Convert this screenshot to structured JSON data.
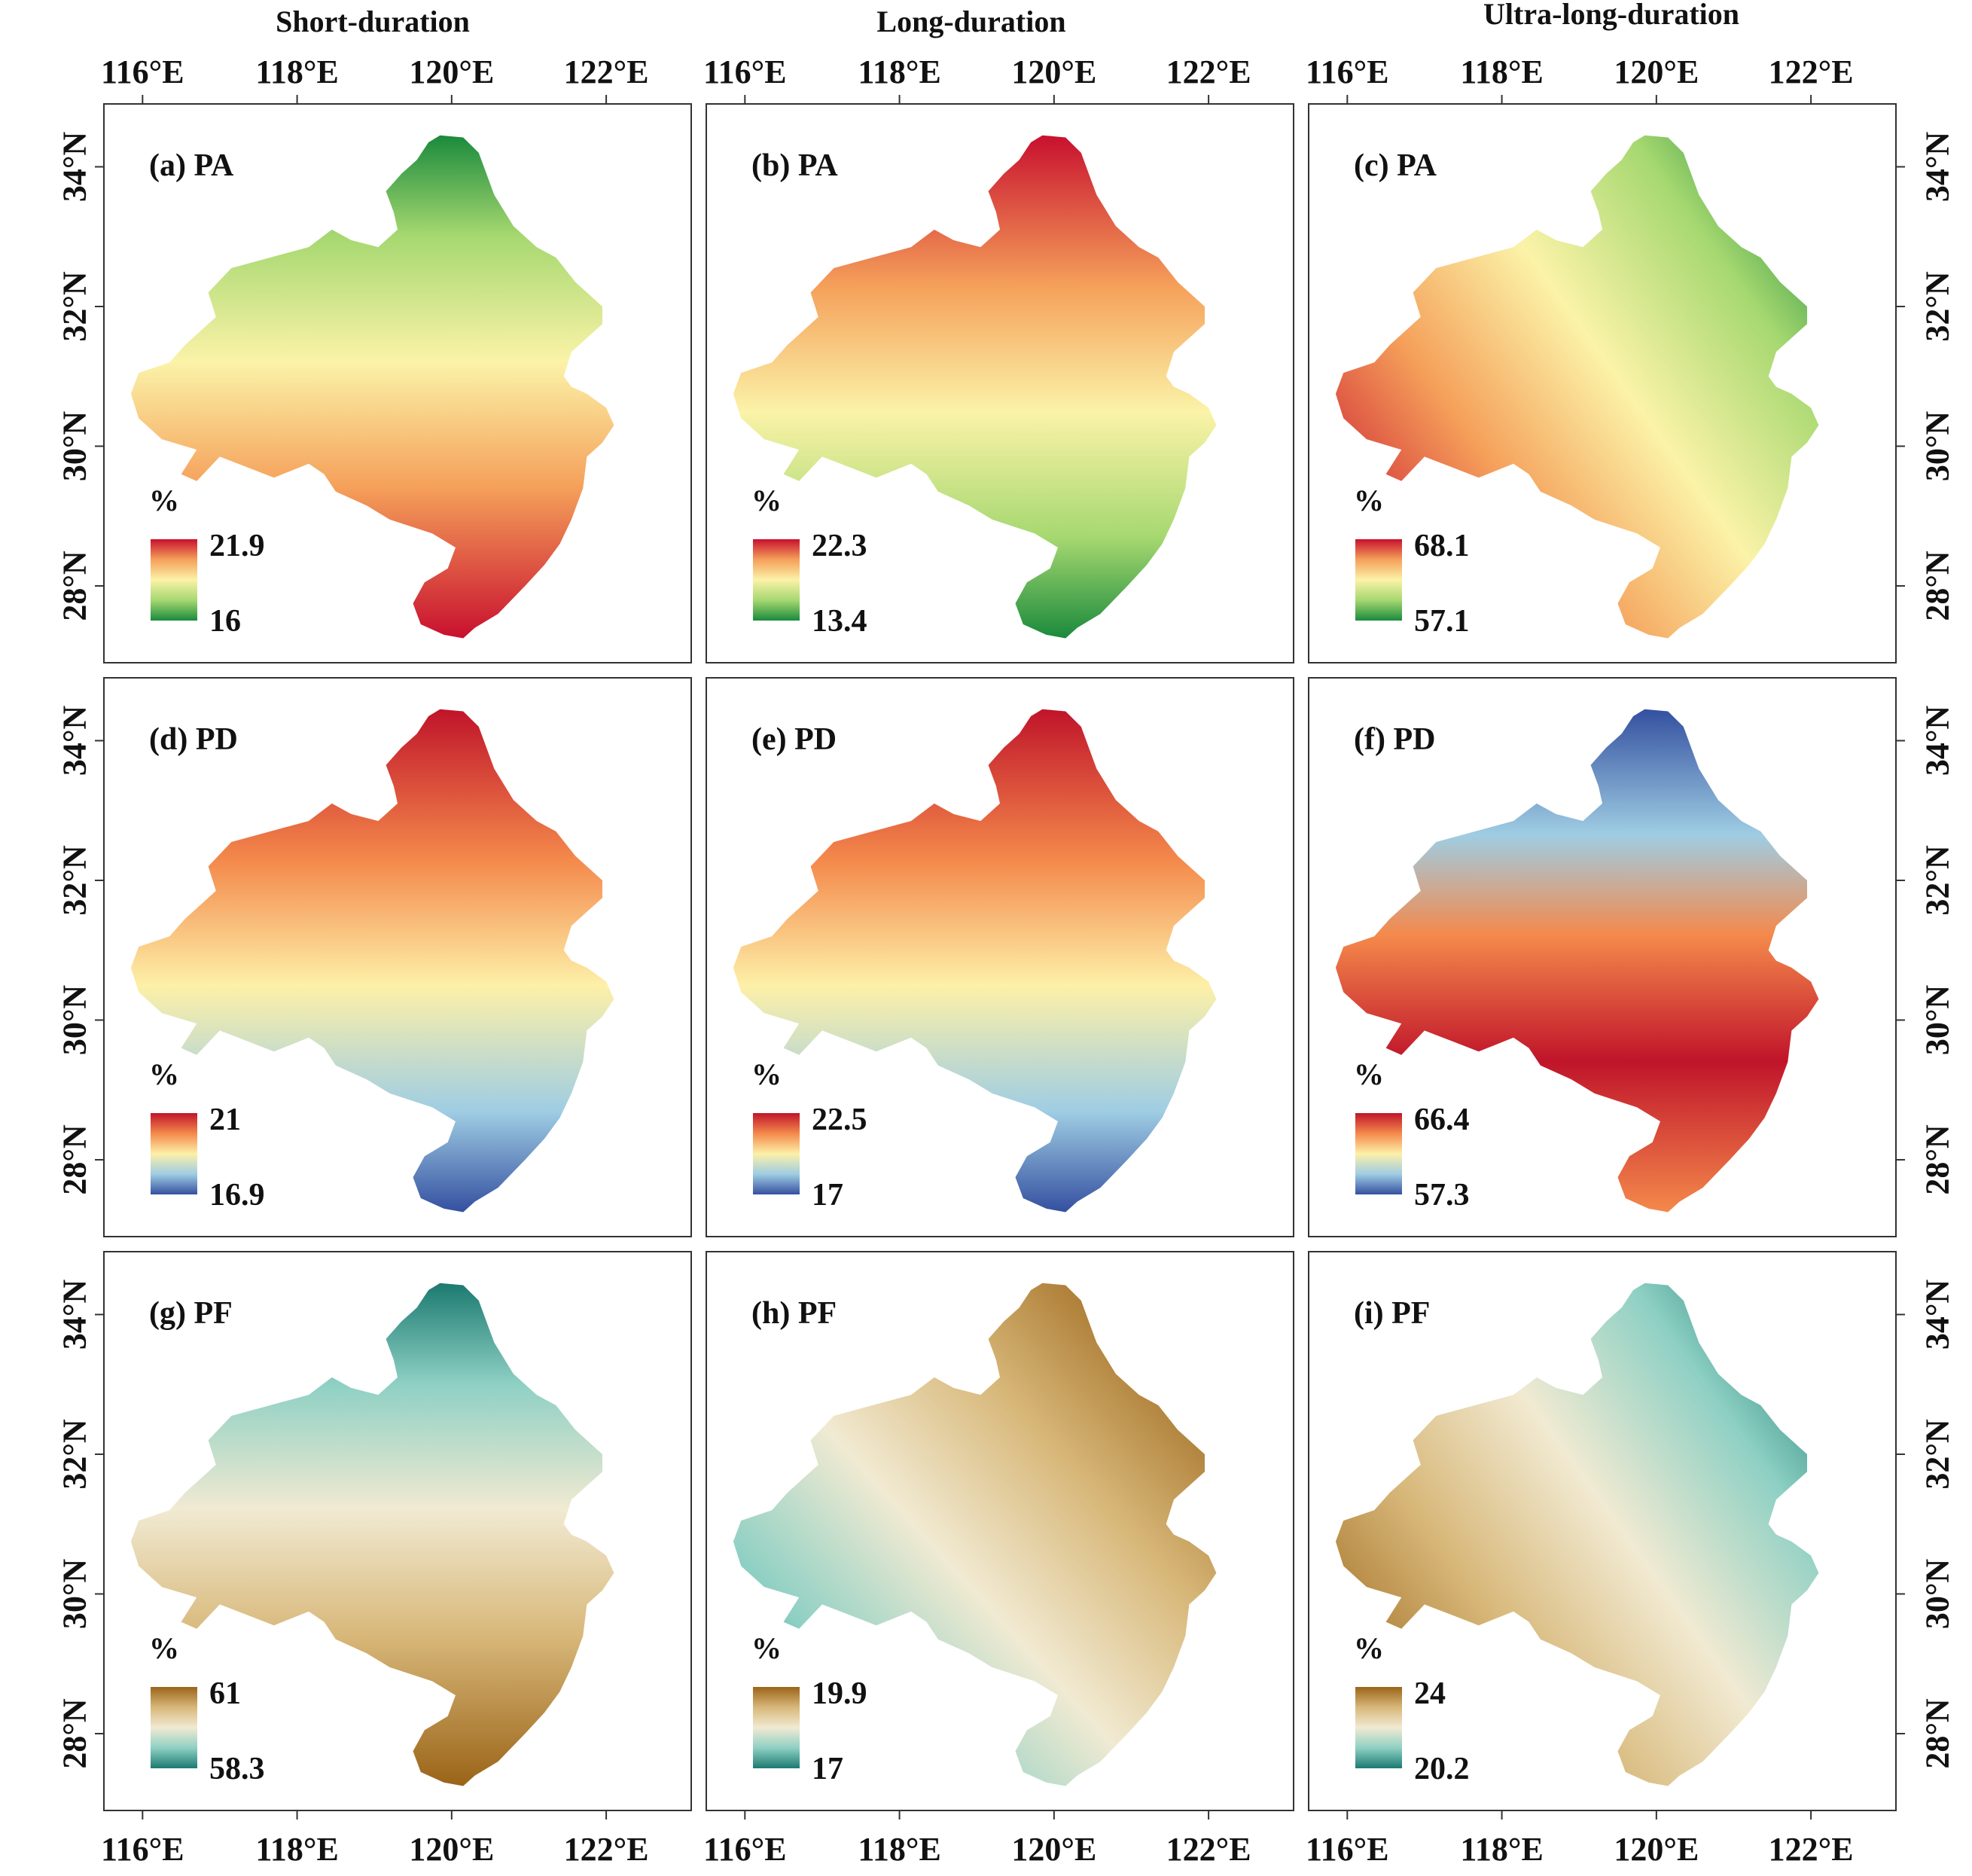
{
  "column_titles": [
    "Short-duration",
    "Long-duration",
    "Ultra-long-duration"
  ],
  "lon_ticks": [
    "116°E",
    "118°E",
    "120°E",
    "122°E"
  ],
  "lat_ticks": [
    "34°N",
    "32°N",
    "30°N",
    "28°N"
  ],
  "unit_label": "%",
  "panels": [
    {
      "label": "(a) PA",
      "max": "21.9",
      "min": "16",
      "palette": "RdYlGn",
      "hot": "s"
    },
    {
      "label": "(b) PA",
      "max": "22.3",
      "min": "13.4",
      "palette": "RdYlGn",
      "hot": "n"
    },
    {
      "label": "(c) PA",
      "max": "68.1",
      "min": "57.1",
      "palette": "RdYlGn",
      "hot": "sw"
    },
    {
      "label": "(d) PD",
      "max": "21",
      "min": "16.9",
      "palette": "RdYlBu",
      "hot": "n"
    },
    {
      "label": "(e) PD",
      "max": "22.5",
      "min": "17",
      "palette": "RdYlBu",
      "hot": "n"
    },
    {
      "label": "(f) PD",
      "max": "66.4",
      "min": "57.3",
      "palette": "RdYlBu",
      "hot": "mid"
    },
    {
      "label": "(g) PF",
      "max": "61",
      "min": "58.3",
      "palette": "BrBG",
      "hot": "s"
    },
    {
      "label": "(h) PF",
      "max": "19.9",
      "min": "17",
      "palette": "BrBG",
      "hot": "ne"
    },
    {
      "label": "(i) PF",
      "max": "24",
      "min": "20.2",
      "palette": "BrBG",
      "hot": "sw"
    }
  ],
  "palettes": {
    "RdYlGn": [
      "#c8102e",
      "#f5a05a",
      "#fbf3a8",
      "#a6d870",
      "#1a8a3c"
    ],
    "RdYlBu": [
      "#c0142a",
      "#f4894b",
      "#fdf0a8",
      "#9fcde3",
      "#3450a0"
    ],
    "BrBG": [
      "#9a6418",
      "#d8b87a",
      "#f1ead2",
      "#8ed0c4",
      "#1c7a70"
    ]
  }
}
